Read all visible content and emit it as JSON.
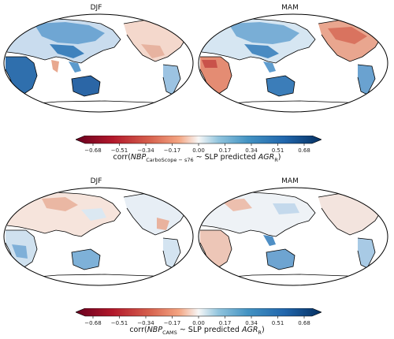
{
  "figure": {
    "rows": [
      {
        "panels": [
          {
            "title": "DJF"
          },
          {
            "title": "MAM"
          }
        ],
        "colorbar": {
          "ticks": [
            "−0.68",
            "−0.51",
            "−0.34",
            "−0.17",
            "0.00",
            "0.17",
            "0.34",
            "0.51",
            "0.68"
          ],
          "label_prefix": "corr(",
          "var": "NBP",
          "sub": "CarboScope − s76",
          "label_mid": " ~ SLP predicted ",
          "var2": "AGR",
          "sub2": "R",
          "label_end": ")"
        }
      },
      {
        "panels": [
          {
            "title": "DJF"
          },
          {
            "title": "MAM"
          }
        ],
        "colorbar": {
          "ticks": [
            "−0.68",
            "−0.51",
            "−0.34",
            "−0.17",
            "0.00",
            "0.17",
            "0.34",
            "0.51",
            "0.68"
          ],
          "label_prefix": "corr(",
          "var": "NBP",
          "sub": "CAMS",
          "label_mid": " ~ SLP predicted ",
          "var2": "AGR",
          "sub2": "R",
          "label_end": ")"
        }
      }
    ],
    "colors": {
      "strong_neg": "#67001f",
      "mid_neg": "#d6604d",
      "weak_neg": "#fddbc7",
      "neutral": "#f7f7f7",
      "weak_pos": "#d1e5f0",
      "mid_pos": "#4393c3",
      "strong_pos": "#053061"
    }
  }
}
